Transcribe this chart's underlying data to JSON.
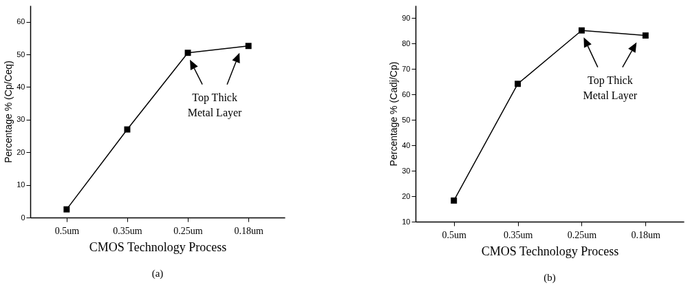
{
  "chart_data": [
    {
      "type": "line",
      "title": "(a)",
      "xlabel": "CMOS Technology Process",
      "ylabel": "Percentage % (Cp/Ceq)",
      "categories": [
        "0.5um",
        "0.35um",
        "0.25um",
        "0.18um"
      ],
      "series": [
        {
          "color": "#000000",
          "values": [
            2.5,
            27,
            50.5,
            52.6
          ]
        }
      ],
      "ylim": [
        0,
        65
      ],
      "yticks": [
        0,
        10,
        20,
        30,
        40,
        50,
        60
      ],
      "marker": "square",
      "line_style": "solid",
      "grid": false,
      "legend": false,
      "annotations": [
        "Top Thick Metal Layer"
      ]
    },
    {
      "type": "line",
      "title": "(b)",
      "xlabel": "CMOS Technology Process",
      "ylabel": "Percentage % (Cadj/Cp)",
      "categories": [
        "0.5um",
        "0.35um",
        "0.25um",
        "0.18um"
      ],
      "series": [
        {
          "color": "#000000",
          "values": [
            18.3,
            64.2,
            85.2,
            83.2
          ]
        }
      ],
      "ylim": [
        10,
        95
      ],
      "yticks": [
        10,
        20,
        30,
        40,
        50,
        60,
        70,
        80,
        90
      ],
      "marker": "square",
      "line_style": "solid",
      "grid": false,
      "legend": false,
      "annotations": [
        "Top Thick Metal Layer"
      ]
    }
  ]
}
